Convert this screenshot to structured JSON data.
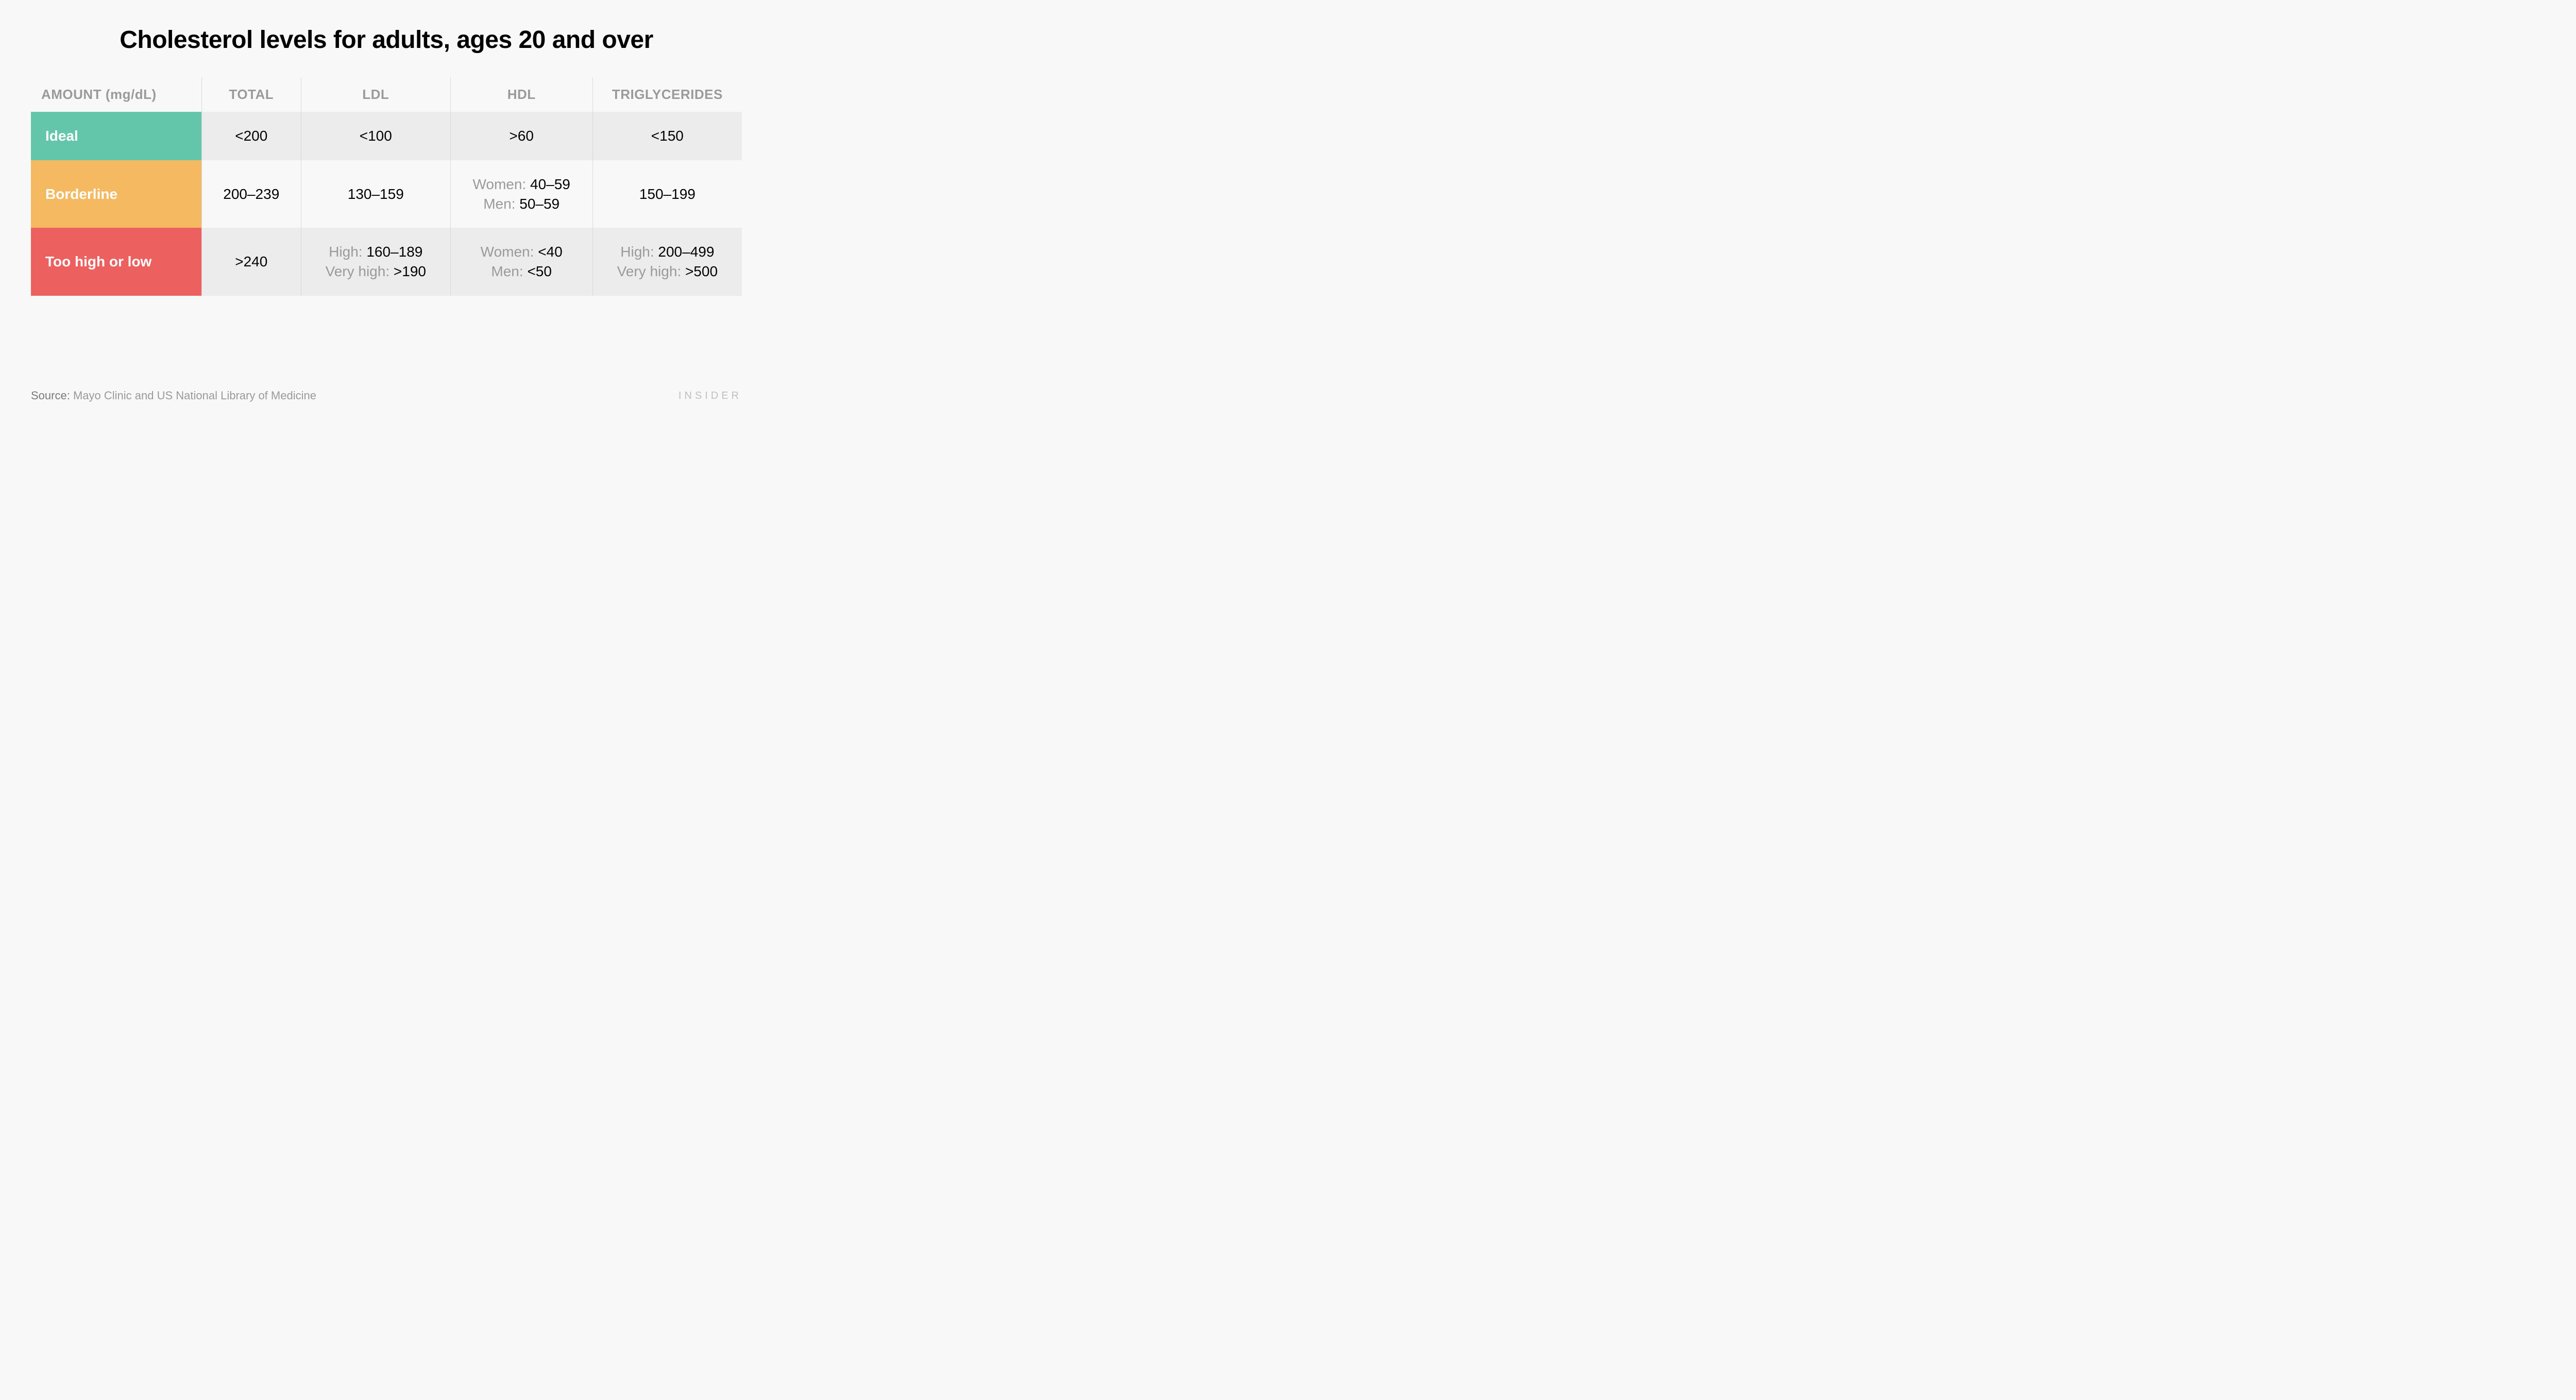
{
  "title": "Cholesterol levels for adults, ages 20 and over",
  "table": {
    "type": "table",
    "columns": [
      "AMOUNT (mg/dL)",
      "TOTAL",
      "LDL",
      "HDL",
      "TRIGLYCERIDES"
    ],
    "column_widths_pct": [
      24,
      14,
      21,
      20,
      21
    ],
    "header_color": "#9a9a9a",
    "header_fontsize": 26,
    "cell_fontsize": 28,
    "value_color": "#000000",
    "label_color": "#9a9a9a",
    "row_band_colors": [
      "#ececec",
      "#f8f8f8",
      "#ececec"
    ],
    "category_colors": {
      "ideal": "#63c6ab",
      "borderline": "#f5b961",
      "extreme": "#ec6060"
    },
    "grid_color": "#d8d8d8",
    "rows": [
      {
        "name": "Ideal",
        "total": "<200",
        "ldl": "<100",
        "hdl": ">60",
        "trig": "<150"
      },
      {
        "name": "Borderline",
        "total": "200–239",
        "ldl": "130–159",
        "hdl_women_label": "Women: ",
        "hdl_women_val": "40–59",
        "hdl_men_label": "Men: ",
        "hdl_men_val": "50–59",
        "trig": "150–199"
      },
      {
        "name": "Too high or low",
        "total": ">240",
        "ldl_high_label": "High: ",
        "ldl_high_val": "160–189",
        "ldl_vhigh_label": "Very high: ",
        "ldl_vhigh_val": ">190",
        "hdl_women_label": "Women: ",
        "hdl_women_val": "<40",
        "hdl_men_label": "Men: ",
        "hdl_men_val": "<50",
        "trig_high_label": "High: ",
        "trig_high_val": "200–499",
        "trig_vhigh_label": "Very high: ",
        "trig_vhigh_val": ">500"
      }
    ]
  },
  "source": {
    "label": "Source:",
    "text": "Mayo Clinic and US National Library of Medicine"
  },
  "brand": "INSIDER",
  "background_color": "#f8f8f8"
}
